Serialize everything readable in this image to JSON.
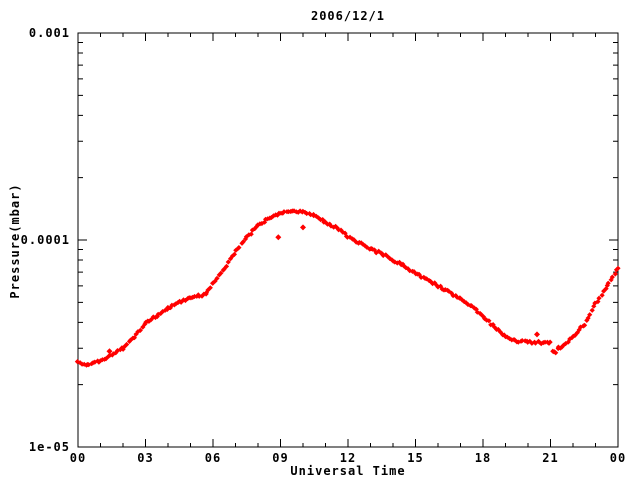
{
  "title": "2006/12/1",
  "colors": {
    "curve": "#ff0000",
    "axis": "#000000",
    "background": "#ffffff"
  },
  "chart_data": {
    "type": "scatter",
    "title": "2006/12/1",
    "xlabel": "Universal Time",
    "ylabel": "Pressure(mbar)",
    "marker": "diamond",
    "grid": false,
    "legend": null,
    "yscale": "log",
    "xlim": [
      0,
      24
    ],
    "ylim": [
      1e-05,
      0.001
    ],
    "xticks_major_hours": [
      0,
      3,
      6,
      9,
      12,
      15,
      18,
      21,
      24
    ],
    "xtick_minor_every_hours": 1,
    "xtick_labels": [
      "00",
      "03",
      "06",
      "09",
      "12",
      "15",
      "18",
      "21",
      "00"
    ],
    "ytick_values": [
      0.001,
      0.0001,
      1e-05
    ],
    "ytick_labels": [
      "0.001",
      "0.0001",
      "1e-05"
    ],
    "series": [
      {
        "name": "pressure",
        "color": "#ff0000",
        "x": [
          0,
          0.5,
          1,
          1.5,
          2,
          2.5,
          3,
          3.5,
          4,
          4.5,
          5,
          5.4,
          5.7,
          6,
          6.5,
          7,
          7.5,
          8,
          8.5,
          9,
          9.5,
          10,
          10.5,
          11,
          11.5,
          12,
          12.5,
          13,
          13.5,
          14,
          14.5,
          15,
          15.5,
          16,
          16.5,
          17,
          17.5,
          18,
          18.5,
          19,
          19.5,
          20,
          20.5,
          21,
          21.1,
          21.25,
          21.35,
          21.5,
          22,
          22.5,
          23,
          23.5,
          24
        ],
        "y": [
          2.55e-05,
          2.5e-05,
          2.6e-05,
          2.8e-05,
          3e-05,
          3.4e-05,
          3.95e-05,
          4.3e-05,
          4.7e-05,
          5e-05,
          5.3e-05,
          5.4e-05,
          5.5e-05,
          6.2e-05,
          7.3e-05,
          8.8e-05,
          0.000103,
          0.000117,
          0.000128,
          0.000135,
          0.000138,
          0.000136,
          0.000131,
          0.000122,
          0.000114,
          0.000104,
          9.7e-05,
          9e-05,
          8.6e-05,
          8e-05,
          7.5e-05,
          6.9e-05,
          6.5e-05,
          6e-05,
          5.6e-05,
          5.2e-05,
          4.8e-05,
          4.3e-05,
          3.8e-05,
          3.4e-05,
          3.25e-05,
          3.2e-05,
          3.2e-05,
          3.2e-05,
          2.9e-05,
          2.85e-05,
          3e-05,
          3.05e-05,
          3.4e-05,
          3.9e-05,
          4.9e-05,
          6e-05,
          7.3e-05
        ]
      }
    ],
    "outliers": [
      {
        "x": 8.9,
        "y": 0.000103
      },
      {
        "x": 10.0,
        "y": 0.000115
      },
      {
        "x": 20.4,
        "y": 3.5e-05
      },
      {
        "x": 1.4,
        "y": 2.9e-05
      }
    ]
  }
}
